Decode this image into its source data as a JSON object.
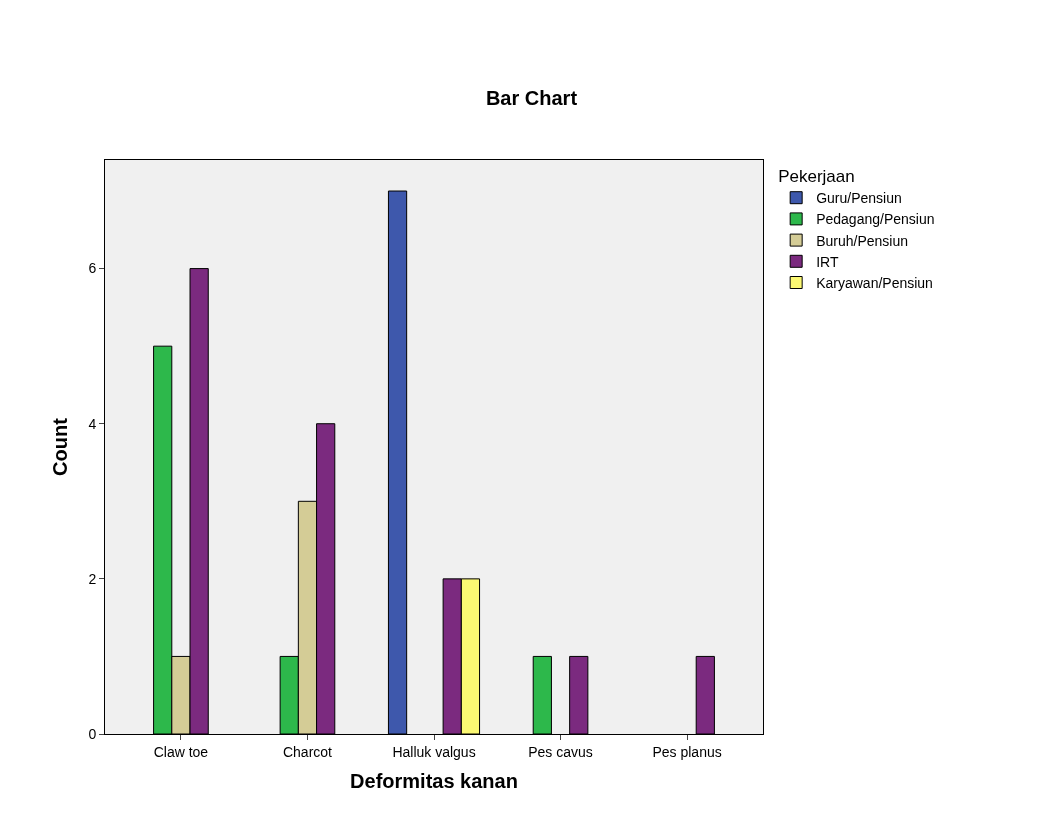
{
  "chart_data": {
    "type": "bar",
    "title": "Bar Chart",
    "xlabel": "Deformitas kanan",
    "ylabel": "Count",
    "legend_title": "Pekerjaan",
    "categories": [
      "Claw toe",
      "Charcot",
      "Halluk valgus",
      "Pes cavus",
      "Pes planus"
    ],
    "series": [
      {
        "name": "Guru/Pensiun",
        "color": "#3e58ac",
        "values": [
          null,
          null,
          7,
          null,
          null
        ]
      },
      {
        "name": "Pedagang/Pensiun",
        "color": "#2db84b",
        "values": [
          5,
          1,
          null,
          1,
          null
        ]
      },
      {
        "name": "Buruh/Pensiun",
        "color": "#d4cc96",
        "values": [
          1,
          3,
          null,
          null,
          null
        ]
      },
      {
        "name": "IRT",
        "color": "#7b2a7f",
        "values": [
          6,
          4,
          2,
          1,
          1
        ]
      },
      {
        "name": "Karyawan/Pensiun",
        "color": "#fbf873",
        "values": [
          null,
          null,
          2,
          null,
          null
        ]
      }
    ],
    "ylim": [
      0,
      7.4
    ],
    "yticks": [
      0,
      2,
      4,
      6
    ],
    "grid": false,
    "legend": "right"
  }
}
